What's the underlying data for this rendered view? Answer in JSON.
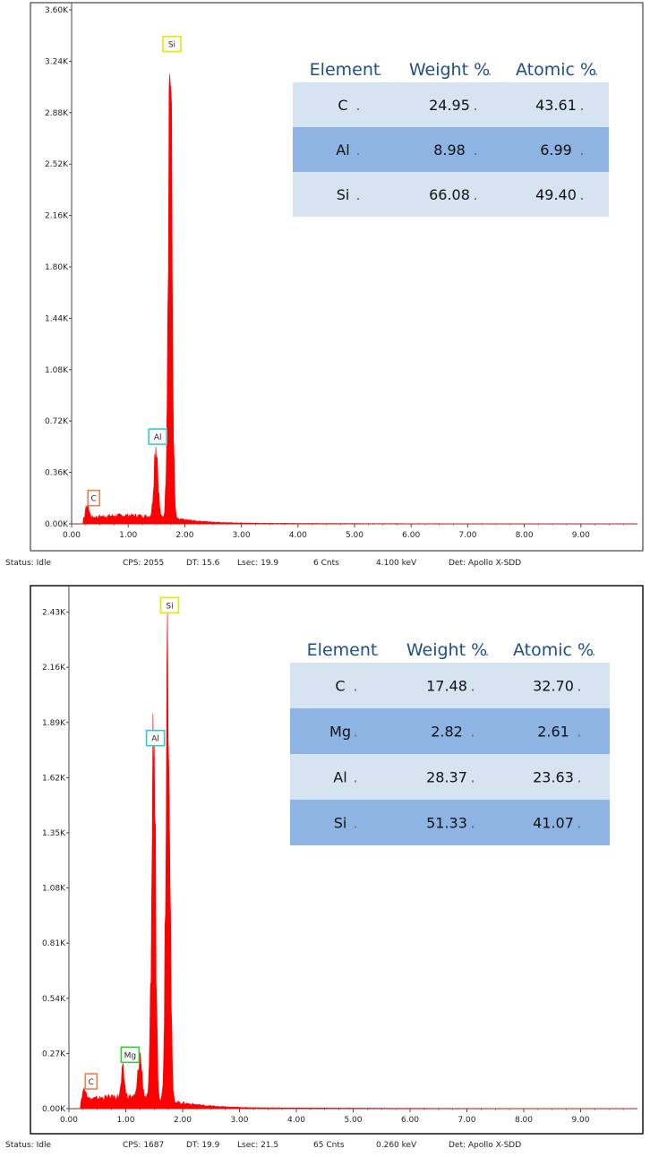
{
  "colors": {
    "spectrum": "#ff0000",
    "table_header_text": "#1f4e8c",
    "row_light": "#d6e4f2",
    "row_dark": "#8db4e2",
    "marker_C": "#f07f4f",
    "marker_Mg": "#33cc33",
    "marker_Al": "#33cccc",
    "marker_Si": "#e6e600"
  },
  "chart_data": [
    {
      "type": "area",
      "xlim": [
        0,
        10
      ],
      "ylim": [
        0,
        3.6
      ],
      "x_ticks": [
        "0.00",
        "1.00",
        "2.00",
        "3.00",
        "4.00",
        "5.00",
        "6.00",
        "7.00",
        "8.00",
        "9.00"
      ],
      "y_ticks": [
        "0.00K",
        "0.36K",
        "0.72K",
        "1.08K",
        "1.44K",
        "1.80K",
        "2.16K",
        "2.52K",
        "2.88K",
        "3.24K",
        "3.60K"
      ],
      "peaks": [
        {
          "element": "C",
          "energy": 0.28,
          "counts": 0.09
        },
        {
          "element": "Al",
          "energy": 1.49,
          "counts": 0.52
        },
        {
          "element": "Si",
          "energy": 1.74,
          "counts": 3.27
        }
      ],
      "table": {
        "headers": [
          "Element",
          "Weight %",
          "Atomic %"
        ],
        "rows": [
          [
            "C",
            "24.95",
            "43.61"
          ],
          [
            "Al",
            "8.98",
            "6.99"
          ],
          [
            "Si",
            "66.08",
            "49.40"
          ]
        ]
      },
      "status": {
        "state": "Status: Idle",
        "cps": "CPS: 2055",
        "dt": "DT: 15.6",
        "lsec": "Lsec: 19.9",
        "cnts": "6 Cnts",
        "kev": "4.100 keV",
        "det": "Det: Apollo X-SDD"
      }
    },
    {
      "type": "area",
      "xlim": [
        0,
        10
      ],
      "ylim": [
        0,
        2.52
      ],
      "x_ticks": [
        "0.00",
        "1.00",
        "2.00",
        "3.00",
        "4.00",
        "5.00",
        "6.00",
        "7.00",
        "8.00",
        "9.00"
      ],
      "y_ticks": [
        "0.00K",
        "0.27K",
        "0.54K",
        "0.81K",
        "1.08K",
        "1.35K",
        "1.62K",
        "1.89K",
        "2.16K",
        "2.43K"
      ],
      "peaks": [
        {
          "element": "C",
          "energy": 0.28,
          "counts": 0.07
        },
        {
          "element": "",
          "energy": 0.95,
          "counts": 0.12
        },
        {
          "element": "Mg",
          "energy": 1.25,
          "counts": 0.2
        },
        {
          "element": "Al",
          "energy": 1.49,
          "counts": 1.75
        },
        {
          "element": "Si",
          "energy": 1.74,
          "counts": 2.4
        }
      ],
      "table": {
        "headers": [
          "Element",
          "Weight %",
          "Atomic %"
        ],
        "rows": [
          [
            "C",
            "17.48",
            "32.70"
          ],
          [
            "Mg",
            "2.82",
            "2.61"
          ],
          [
            "Al",
            "28.37",
            "23.63"
          ],
          [
            "Si",
            "51.33",
            "41.07"
          ]
        ]
      },
      "status": {
        "state": "Status: Idle",
        "cps": "CPS: 1687",
        "dt": "DT: 19.9",
        "lsec": "Lsec: 21.5",
        "cnts": "65 Cnts",
        "kev": "0.260 keV",
        "det": "Det: Apollo X-SDD"
      }
    }
  ]
}
